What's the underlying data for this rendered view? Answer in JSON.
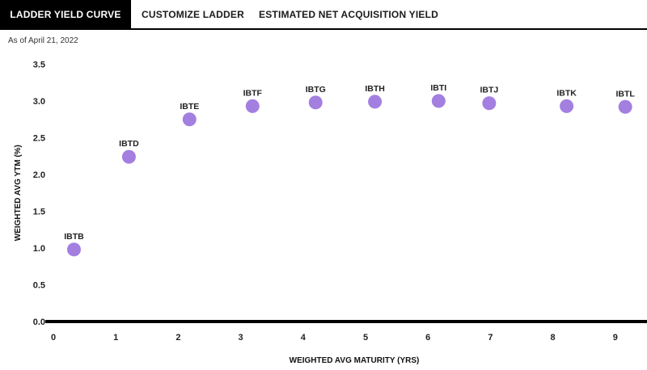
{
  "tabs": [
    {
      "label": "LADDER YIELD CURVE",
      "active": true
    },
    {
      "label": "CUSTOMIZE LADDER",
      "active": false
    },
    {
      "label": "ESTIMATED NET ACQUISITION YIELD",
      "active": false
    }
  ],
  "as_of": "As of April 21, 2022",
  "colors": {
    "point": "#a37fe0",
    "axis": "#000000",
    "active_tab_bg": "#000000"
  },
  "chart_data": {
    "type": "scatter",
    "xlabel": "WEIGHTED AVG MATURITY (YRS)",
    "ylabel": "WEIGHTED AVG YTM (%)",
    "xlim": [
      0,
      9.5
    ],
    "ylim": [
      0,
      3.5
    ],
    "xticks": [
      "0",
      "1",
      "2",
      "3",
      "4",
      "5",
      "6",
      "7",
      "8",
      "9"
    ],
    "yticks": [
      "0.0",
      "0.5",
      "1.0",
      "1.5",
      "2.0",
      "2.5",
      "3.0",
      "3.5"
    ],
    "grid": false,
    "points": [
      {
        "label": "IBTB",
        "x": 0.33,
        "y": 0.98
      },
      {
        "label": "IBTD",
        "x": 1.21,
        "y": 2.24
      },
      {
        "label": "IBTE",
        "x": 2.18,
        "y": 2.75
      },
      {
        "label": "IBTF",
        "x": 3.19,
        "y": 2.93
      },
      {
        "label": "IBTG",
        "x": 4.2,
        "y": 2.98
      },
      {
        "label": "IBTH",
        "x": 5.15,
        "y": 2.99
      },
      {
        "label": "IBTI",
        "x": 6.17,
        "y": 3.0
      },
      {
        "label": "IBTJ",
        "x": 6.98,
        "y": 2.97
      },
      {
        "label": "IBTK",
        "x": 8.22,
        "y": 2.93
      },
      {
        "label": "IBTL",
        "x": 9.16,
        "y": 2.92
      }
    ]
  }
}
